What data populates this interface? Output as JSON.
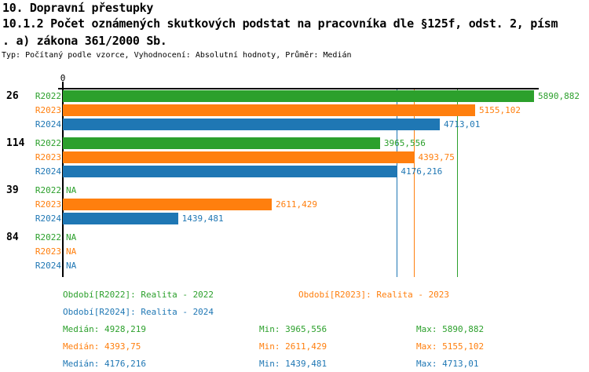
{
  "header": {
    "title_line1": "10. Dopravní přestupky",
    "title_line2": "10.1.2 Počet oznámených skutkových podstat na pracovníka dle §125f, odst. 2, písm",
    "title_line3": ". a) zákona 361/2000 Sb.",
    "subtitle": "Typ: Počítaný podle vzorce, Vyhodnocení: Absolutní hodnoty, Průměr: Medián"
  },
  "colors": {
    "R2022": "#2ca02c",
    "R2023": "#ff7f0e",
    "R2024": "#1f77b4",
    "axis": "#000000"
  },
  "chart_data": {
    "type": "bar",
    "orientation": "horizontal",
    "x_axis": {
      "min": 0,
      "max": 5950,
      "tick_label": "0",
      "gridlines": false
    },
    "series_names": [
      "R2022",
      "R2023",
      "R2024"
    ],
    "groups": [
      {
        "label": "26",
        "bars": [
          {
            "series": "R2022",
            "value": 5890.882,
            "display": "5890,882"
          },
          {
            "series": "R2023",
            "value": 5155.102,
            "display": "5155,102"
          },
          {
            "series": "R2024",
            "value": 4713.01,
            "display": "4713,01"
          }
        ]
      },
      {
        "label": "114",
        "bars": [
          {
            "series": "R2022",
            "value": 3965.556,
            "display": "3965,556"
          },
          {
            "series": "R2023",
            "value": 4393.75,
            "display": "4393,75"
          },
          {
            "series": "R2024",
            "value": 4176.216,
            "display": "4176,216"
          }
        ]
      },
      {
        "label": "39",
        "bars": [
          {
            "series": "R2022",
            "value": null,
            "display": "NA"
          },
          {
            "series": "R2023",
            "value": 2611.429,
            "display": "2611,429"
          },
          {
            "series": "R2024",
            "value": 1439.481,
            "display": "1439,481"
          }
        ]
      },
      {
        "label": "84",
        "bars": [
          {
            "series": "R2022",
            "value": null,
            "display": "NA"
          },
          {
            "series": "R2023",
            "value": null,
            "display": "NA"
          },
          {
            "series": "R2024",
            "value": null,
            "display": "NA"
          }
        ]
      }
    ],
    "median_lines": [
      {
        "series": "R2022",
        "value": 4928.219
      },
      {
        "series": "R2023",
        "value": 4393.75
      },
      {
        "series": "R2024",
        "value": 4176.216
      }
    ]
  },
  "legend": {
    "periods": [
      {
        "series": "R2022",
        "label": "Období[R2022]: Realita - 2022"
      },
      {
        "series": "R2023",
        "label": "Období[R2023]: Realita - 2023"
      },
      {
        "series": "R2024",
        "label": "Období[R2024]: Realita - 2024"
      }
    ],
    "stats": [
      {
        "series": "R2022",
        "median_label": "Medián: 4928,219",
        "min_label": "Min: 3965,556",
        "max_label": "Max: 5890,882"
      },
      {
        "series": "R2023",
        "median_label": "Medián: 4393,75",
        "min_label": "Min: 2611,429",
        "max_label": "Max: 5155,102"
      },
      {
        "series": "R2024",
        "median_label": "Medián: 4176,216",
        "min_label": "Min: 1439,481",
        "max_label": "Max: 4713,01"
      }
    ]
  }
}
